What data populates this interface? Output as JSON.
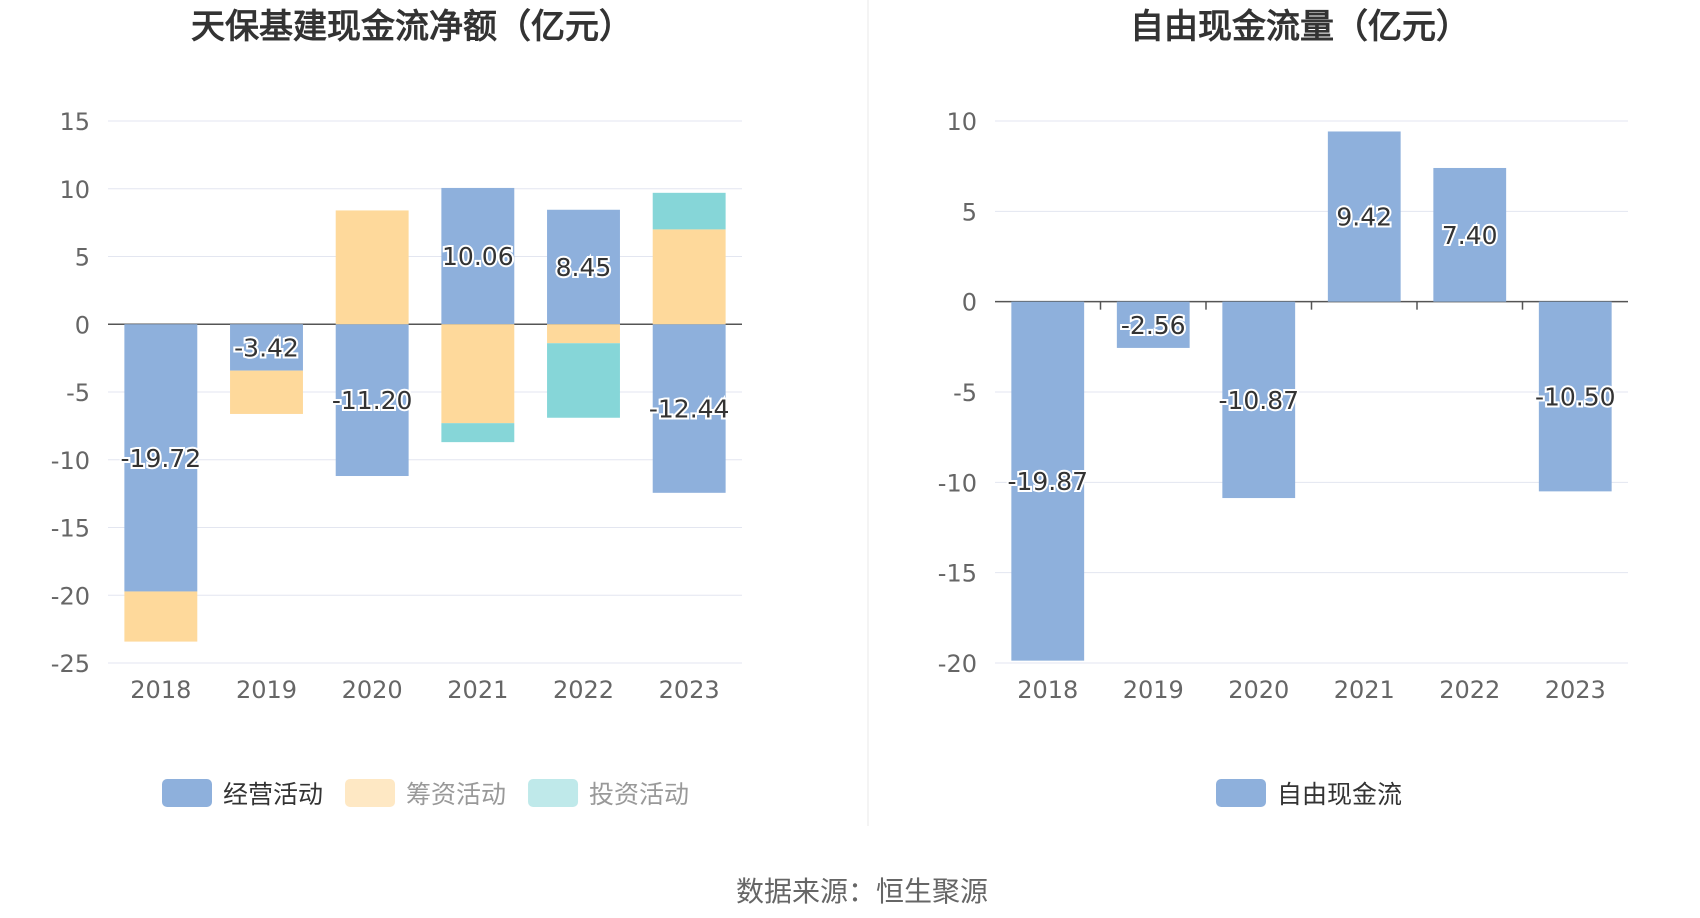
{
  "source": "数据来源：恒生聚源",
  "colors": {
    "op": "#8eb0dc",
    "fin": "#fed99b",
    "inv": "#86d6d8"
  },
  "chart_data": [
    {
      "type": "bar",
      "stacked": true,
      "title": "天保基建现金流净额（亿元）",
      "categories": [
        "2018",
        "2019",
        "2020",
        "2021",
        "2022",
        "2023"
      ],
      "ylim": [
        -25,
        15
      ],
      "yticks": [
        15,
        10,
        5,
        0,
        -5,
        -10,
        -15,
        -20,
        -25
      ],
      "grid": true,
      "legend_position": "bottom",
      "series": [
        {
          "name": "经营活动",
          "color": "#8eb0dc",
          "legend_color": "#8eb0dc",
          "values": [
            -19.72,
            -3.42,
            -11.2,
            10.06,
            8.45,
            -12.44
          ],
          "labels": [
            "-19.72",
            "-3.42",
            "-11.20",
            "10.06",
            "8.45",
            "-12.44"
          ]
        },
        {
          "name": "筹资活动",
          "color": "#fed99b",
          "legend_color": "#fee8c4",
          "values": [
            -3.7,
            -3.2,
            8.4,
            -7.3,
            -1.4,
            7.0
          ]
        },
        {
          "name": "投资活动",
          "color": "#86d6d8",
          "legend_color": "#bfe9ea",
          "values": [
            0,
            0,
            0,
            -1.4,
            -5.5,
            2.7
          ]
        }
      ]
    },
    {
      "type": "bar",
      "title": "自由现金流量（亿元）",
      "categories": [
        "2018",
        "2019",
        "2020",
        "2021",
        "2022",
        "2023"
      ],
      "ylim": [
        -20,
        10
      ],
      "yticks": [
        10,
        5,
        0,
        -5,
        -10,
        -15,
        -20
      ],
      "grid": true,
      "legend_position": "bottom",
      "series": [
        {
          "name": "自由现金流",
          "color": "#8eb0dc",
          "legend_color": "#8eb0dc",
          "values": [
            -19.87,
            -2.56,
            -10.87,
            9.42,
            7.4,
            -10.5
          ],
          "labels": [
            "-19.87",
            "-2.56",
            "-10.87",
            "9.42",
            "7.40",
            "-10.50"
          ]
        }
      ]
    }
  ]
}
